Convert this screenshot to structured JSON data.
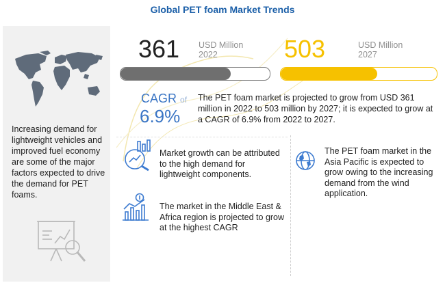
{
  "title": "Global PET foam Market Trends",
  "left_panel": {
    "text": "Increasing demand for lightweight vehicles and improved fuel economy are some of the major factors expected to drive the demand for PET foams."
  },
  "stats": {
    "start": {
      "value": "361",
      "unit": "USD Million",
      "year": "2022",
      "bar_fill_fraction": 0.74,
      "color": "#6f6f6f"
    },
    "end": {
      "value": "503",
      "unit": "USD Million",
      "year": "2027",
      "bar_fill_fraction": 0.62,
      "color": "#f6c100"
    }
  },
  "cagr": {
    "label": "CAGR",
    "of": "of",
    "value": "6.9%",
    "description": "The PET foam market is projected to grow from USD 361 million in 2022 to 503 million by 2027; it is expected to grow at a CAGR of 6.9% from 2022 to 2027."
  },
  "highlights": [
    {
      "text": "Market growth can be attributed to the high demand for lightweight components.",
      "icon": "growth-analytics-icon"
    },
    {
      "text": "The market in the Middle East & Africa region is projected to grow at the highest CAGR",
      "icon": "bar-chart-dollar-icon"
    },
    {
      "text": "The PET foam market in the Asia Pacific is expected to grow owing to the increasing demand from the wind application.",
      "icon": "globe-icon"
    }
  ],
  "colors": {
    "title": "#1b5fa8",
    "accent_blue": "#3a75c4",
    "accent_yellow": "#f6c100",
    "icon_blue": "#3d7bd0"
  }
}
